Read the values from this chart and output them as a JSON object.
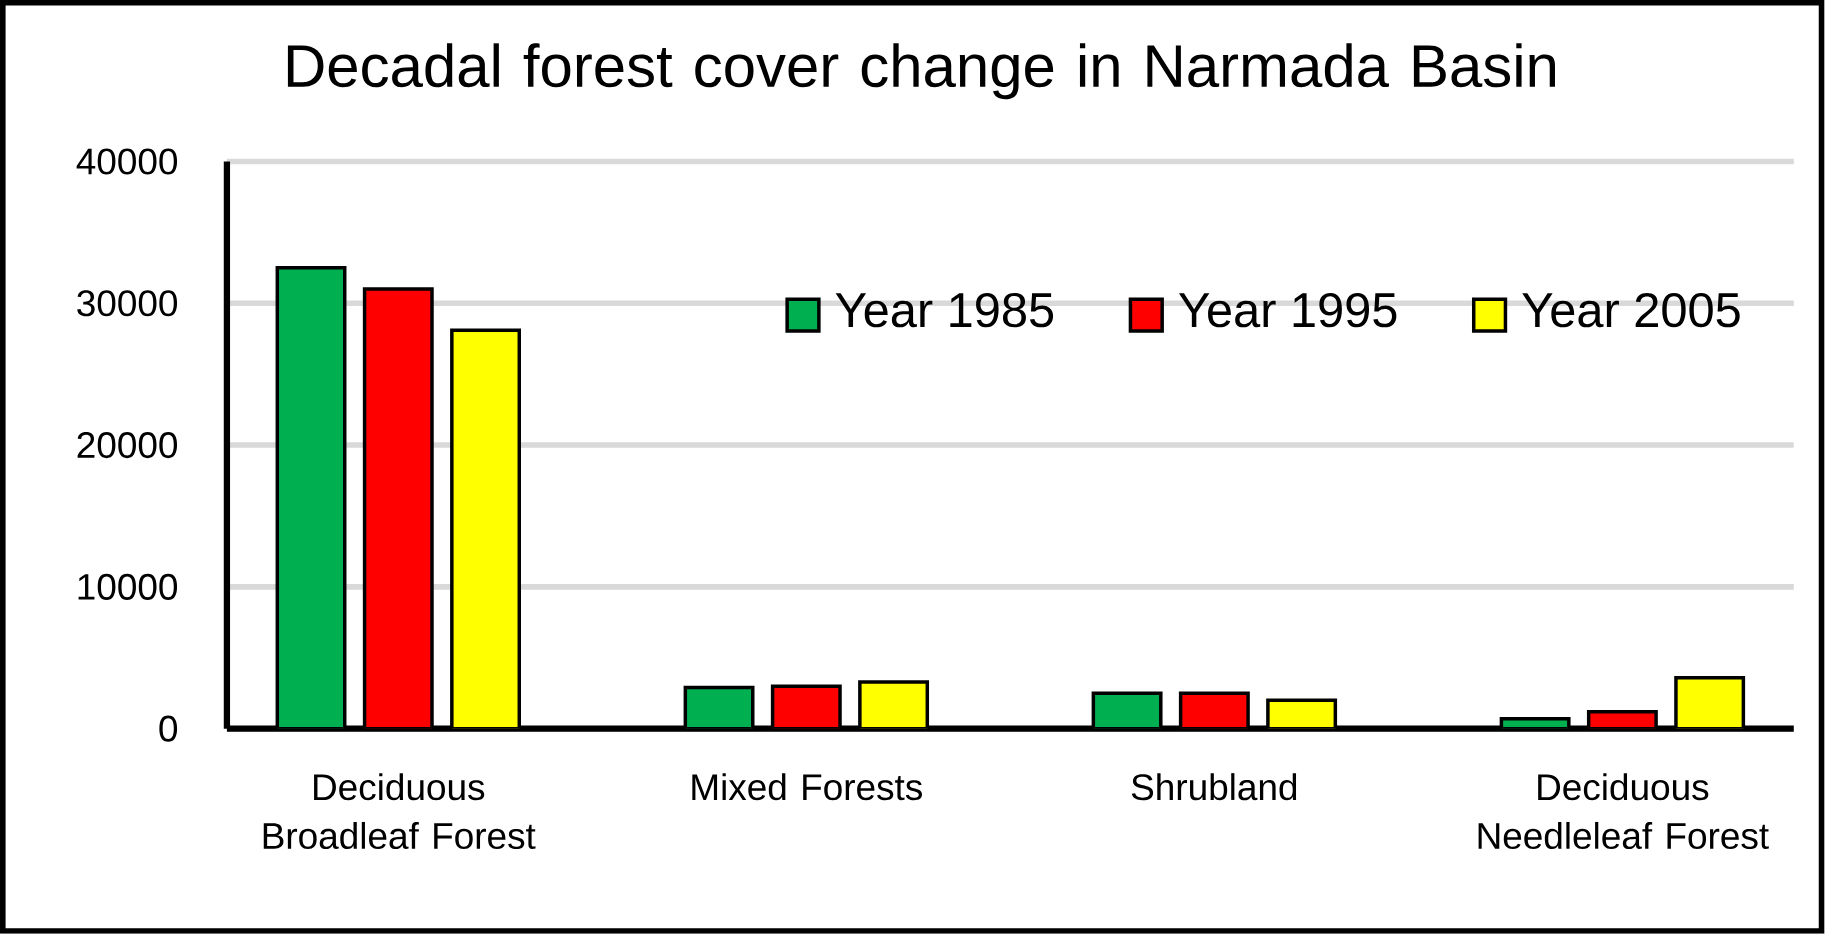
{
  "chart_data": {
    "type": "bar",
    "title": "Decadal forest cover change in Narmada Basin",
    "categories": [
      "Deciduous Broadleaf Forest",
      "Mixed Forests",
      "Shrubland",
      "Deciduous Needleleaf Forest"
    ],
    "series": [
      {
        "name": "Year 1985",
        "color": "#00b050",
        "values": [
          32500,
          2900,
          2500,
          700
        ]
      },
      {
        "name": "Year 1995",
        "color": "#ff0000",
        "values": [
          31000,
          3000,
          2500,
          1200
        ]
      },
      {
        "name": "Year 2005",
        "color": "#ffff00",
        "values": [
          28100,
          3300,
          2000,
          3600
        ]
      }
    ],
    "ylim": [
      0,
      40000
    ],
    "yticks": [
      0,
      10000,
      20000,
      30000,
      40000
    ],
    "grid": "y",
    "legend": "top right"
  }
}
